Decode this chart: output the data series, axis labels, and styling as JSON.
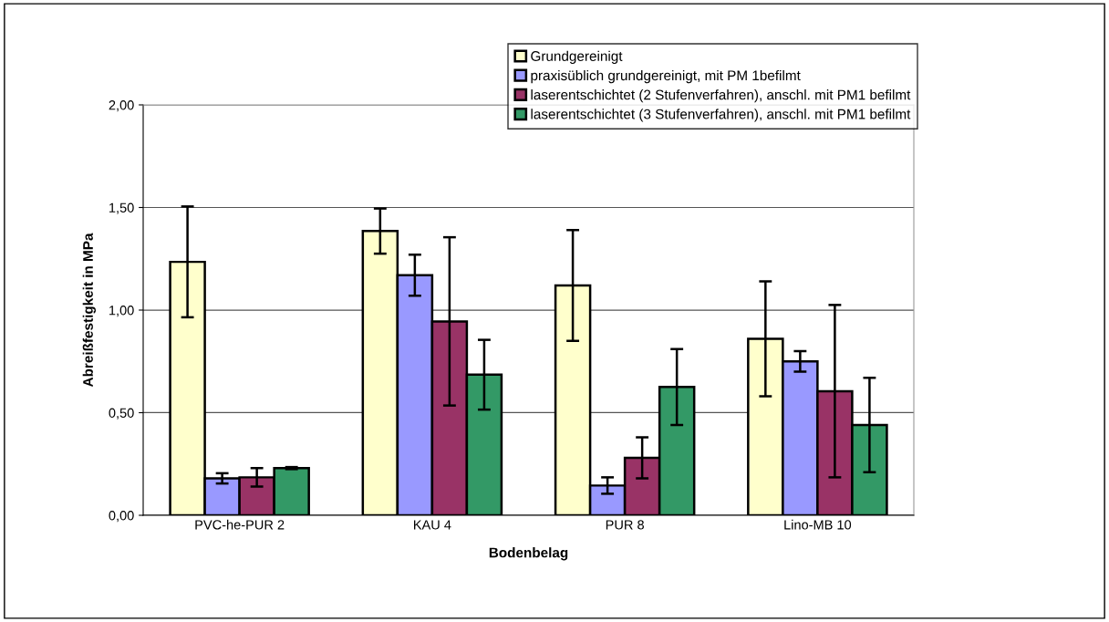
{
  "chart_data": {
    "type": "bar",
    "xlabel": "Bodenbelag",
    "ylabel": "Abreißfestigkeit in MPa",
    "categories": [
      "PVC-he-PUR 2",
      "KAU 4",
      "PUR 8",
      "Lino-MB 10"
    ],
    "series": [
      {
        "name": "Grundgereinigt",
        "color": "#ffffcc",
        "values": [
          1.235,
          1.385,
          1.12,
          0.86
        ],
        "errors": [
          0.27,
          0.11,
          0.27,
          0.28
        ]
      },
      {
        "name": "praxisüblich grundgereinigt, mit PM 1befilmt",
        "color": "#9999ff",
        "values": [
          0.18,
          1.17,
          0.145,
          0.75
        ],
        "errors": [
          0.025,
          0.1,
          0.04,
          0.05
        ]
      },
      {
        "name": "laserentschichtet (2 Stufenverfahren), anschl. mit PM1 befilmt",
        "color": "#993366",
        "values": [
          0.185,
          0.945,
          0.28,
          0.605
        ],
        "errors": [
          0.045,
          0.41,
          0.1,
          0.42
        ]
      },
      {
        "name": "laserentschichtet (3 Stufenverfahren), anschl. mit PM1 befilmt",
        "color": "#339966",
        "values": [
          0.23,
          0.685,
          0.625,
          0.44
        ],
        "errors": [
          0.005,
          0.17,
          0.185,
          0.23
        ]
      }
    ],
    "ylim": [
      0,
      2
    ],
    "yticks": [
      {
        "value": 0,
        "label": "0,00"
      },
      {
        "value": 0.5,
        "label": "0,50"
      },
      {
        "value": 1,
        "label": "1,00"
      },
      {
        "value": 1.5,
        "label": "1,50"
      },
      {
        "value": 2,
        "label": "2,00"
      }
    ],
    "grid": "y",
    "legend": "top right"
  }
}
